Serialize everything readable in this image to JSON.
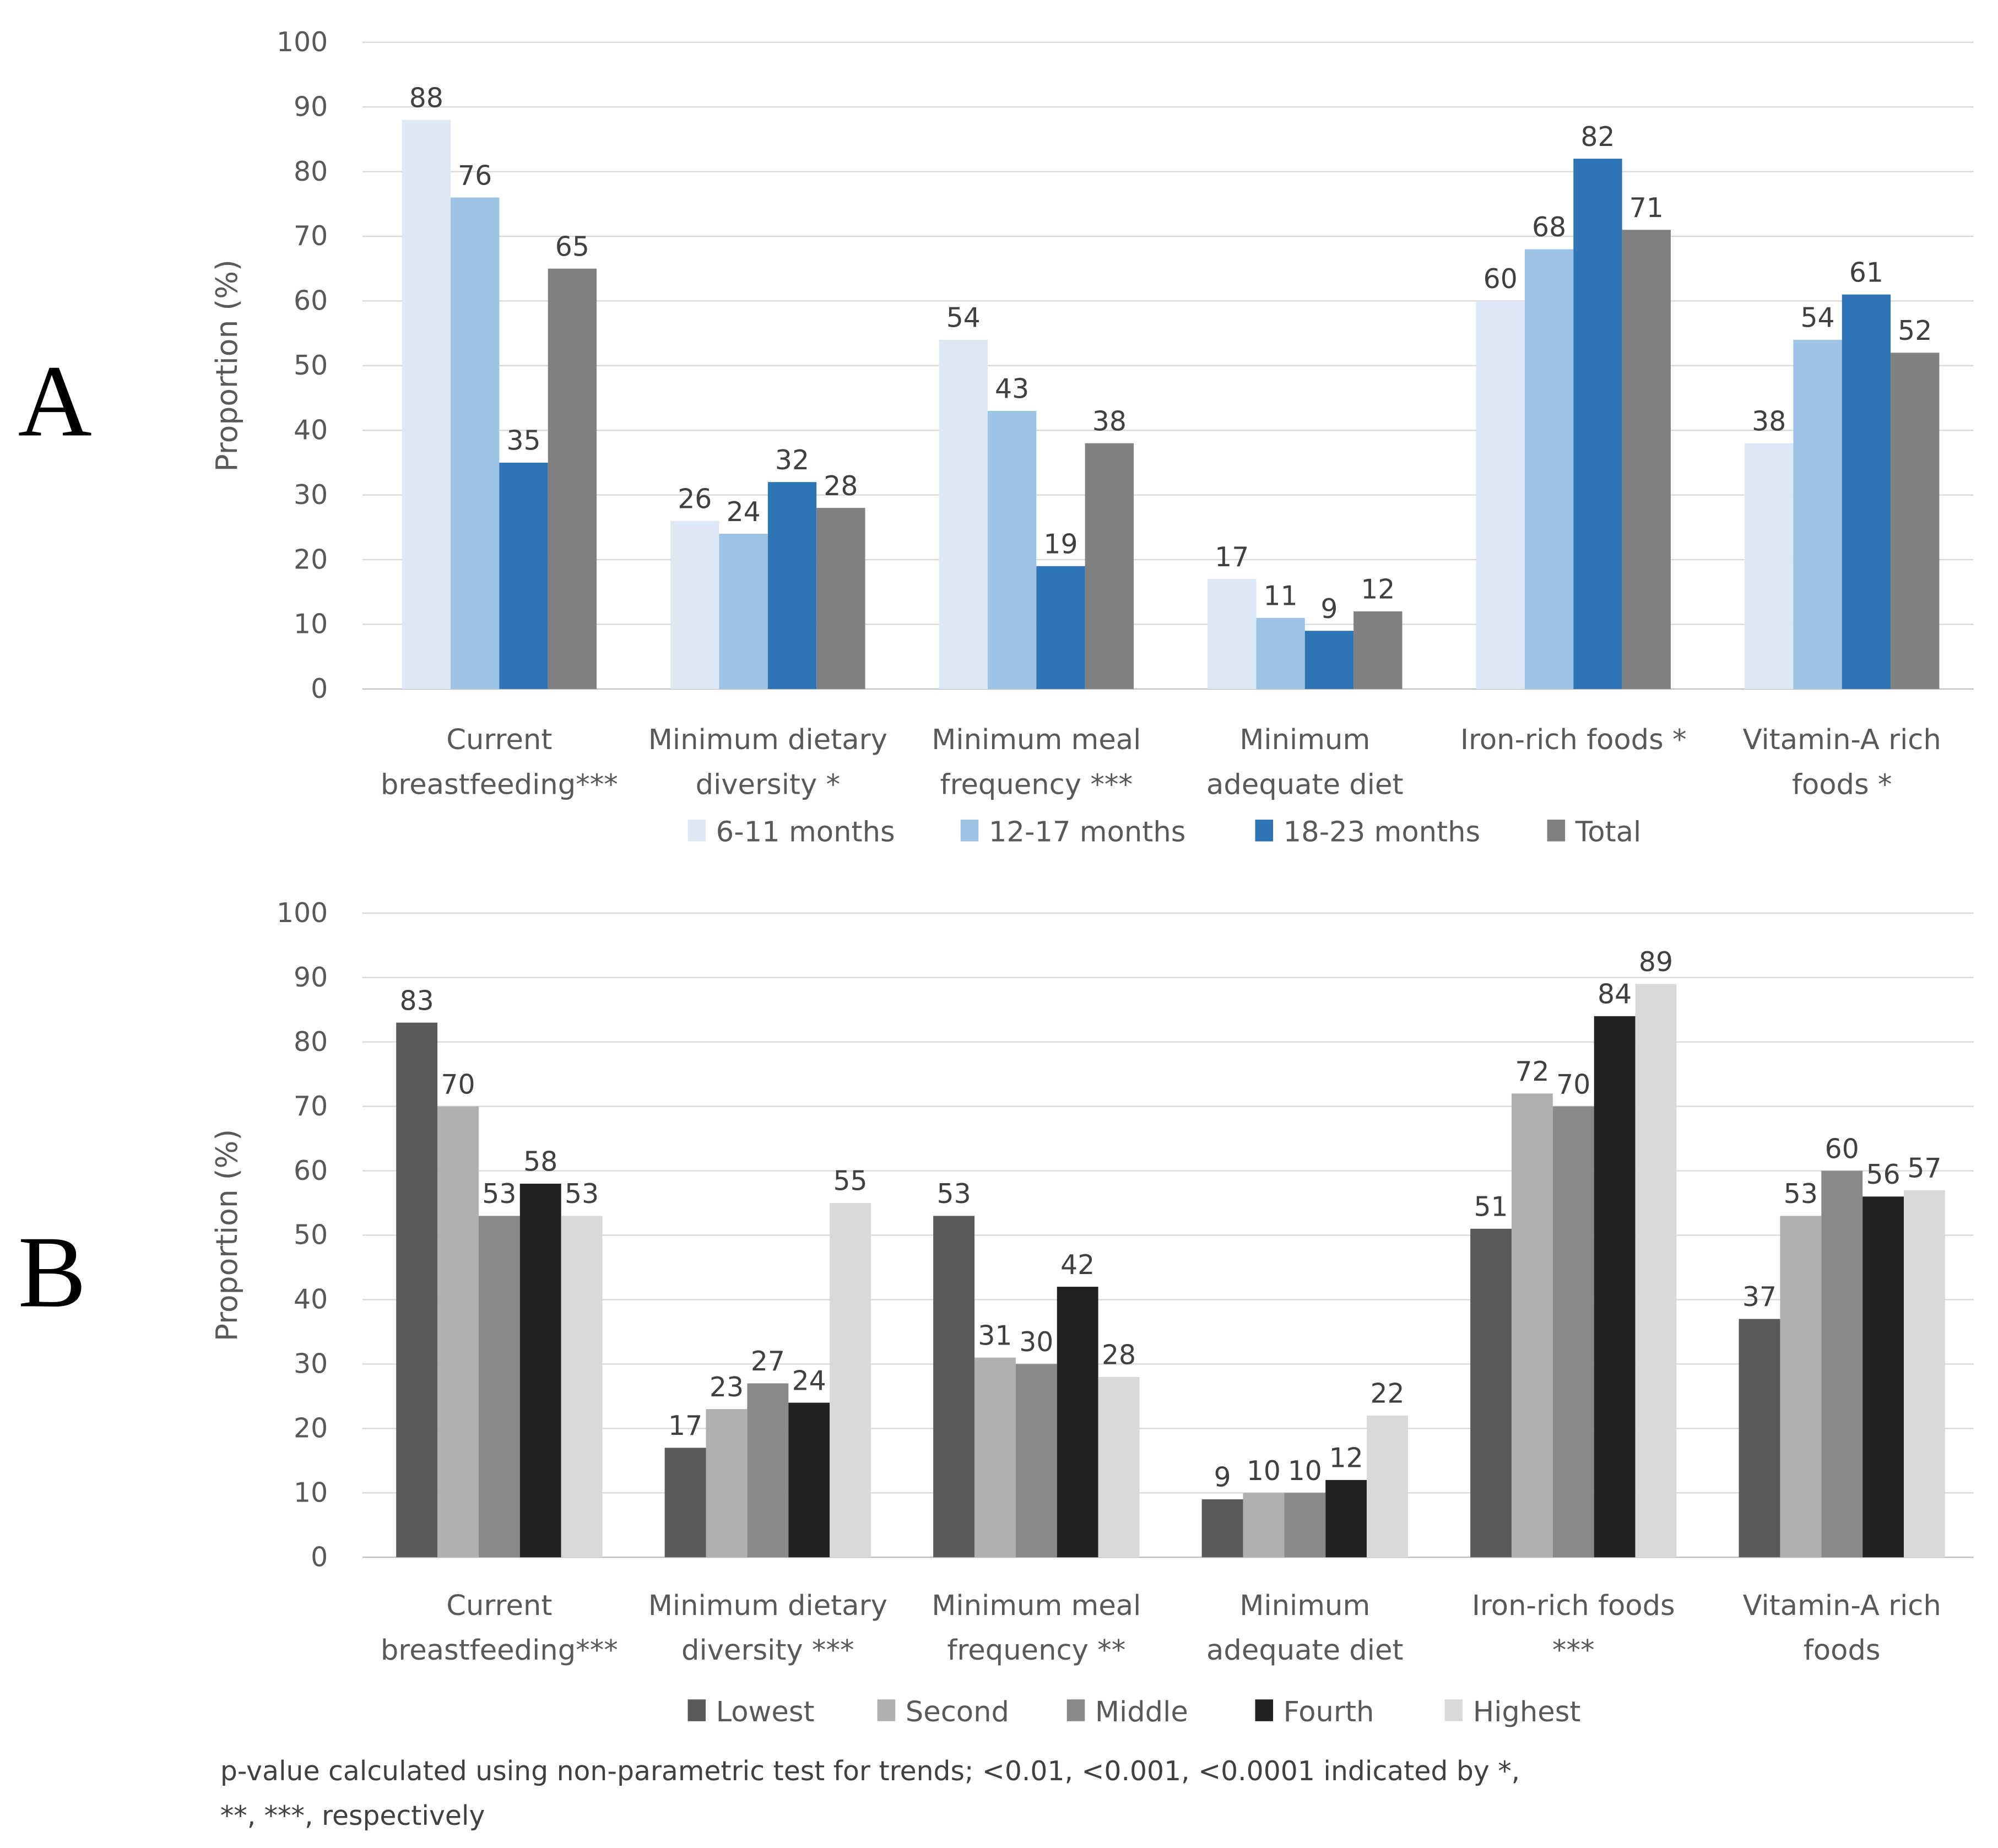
{
  "chart_data": [
    {
      "type": "bar",
      "panel_label": "A",
      "ylabel": "Proportion (%)",
      "xlabel": "",
      "ylim": [
        0,
        100
      ],
      "yticks": [
        0,
        10,
        20,
        30,
        40,
        50,
        60,
        70,
        80,
        90,
        100
      ],
      "grid": true,
      "legend_placement": "bottom",
      "categories": [
        [
          "Current",
          "breastfeeding***"
        ],
        [
          "Minimum dietary",
          "diversity *"
        ],
        [
          "Minimum meal",
          "frequency ***"
        ],
        [
          "Minimum",
          "adequate diet"
        ],
        [
          "Iron-rich foods *"
        ],
        [
          "Vitamin-A rich",
          "foods *"
        ]
      ],
      "series": [
        {
          "name": "6-11 months",
          "color": "#dde8f5",
          "values": [
            88,
            26,
            54,
            17,
            60,
            38
          ]
        },
        {
          "name": "12-17 months",
          "color": "#9dc3e6",
          "values": [
            76,
            24,
            43,
            11,
            68,
            54
          ]
        },
        {
          "name": "18-23 months",
          "color": "#2e75b6",
          "values": [
            35,
            32,
            19,
            9,
            82,
            61
          ]
        },
        {
          "name": "Total",
          "color": "#808080",
          "values": [
            65,
            28,
            38,
            12,
            71,
            52
          ]
        }
      ]
    },
    {
      "type": "bar",
      "panel_label": "B",
      "ylabel": "Proportion (%)",
      "xlabel": "",
      "ylim": [
        0,
        100
      ],
      "yticks": [
        0,
        10,
        20,
        30,
        40,
        50,
        60,
        70,
        80,
        90,
        100
      ],
      "grid": true,
      "legend_placement": "bottom",
      "categories": [
        [
          "Current",
          "breastfeeding***"
        ],
        [
          "Minimum dietary",
          "diversity ***"
        ],
        [
          "Minimum meal",
          "frequency **"
        ],
        [
          "Minimum",
          "adequate diet"
        ],
        [
          "Iron-rich foods",
          "***"
        ],
        [
          "Vitamin-A rich",
          "foods"
        ]
      ],
      "series": [
        {
          "name": "Lowest",
          "color": "#5a5a5a",
          "values": [
            83,
            17,
            53,
            9,
            51,
            37
          ]
        },
        {
          "name": "Second",
          "color": "#b0b0b0",
          "values": [
            70,
            23,
            31,
            10,
            72,
            53
          ]
        },
        {
          "name": "Middle",
          "color": "#898989",
          "values": [
            53,
            27,
            30,
            10,
            70,
            60
          ]
        },
        {
          "name": "Fourth",
          "color": "#222222",
          "values": [
            58,
            24,
            42,
            12,
            84,
            56
          ]
        },
        {
          "name": "Highest",
          "color": "#d9d9d9",
          "values": [
            53,
            55,
            28,
            22,
            89,
            57
          ]
        }
      ]
    }
  ],
  "footnote": [
    "p-value calculated using non-parametric test for trends; <0.01, <0.001, <0.0001 indicated by *,",
    "**, ***, respectively"
  ]
}
